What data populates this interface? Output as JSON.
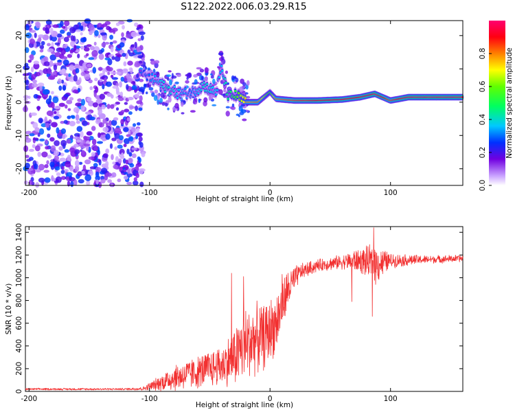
{
  "title": "S122.2022.006.03.29.R15",
  "colors": {
    "snr_line": "#f23030",
    "spectrogram_low": "#a070ff",
    "spectrogram_high": "#ff0033"
  },
  "chart_data": [
    {
      "type": "heatmap",
      "xlabel": "Height of straight line (km)",
      "ylabel": "Frequency (Hz)",
      "xlim": [
        -203,
        160
      ],
      "ylim": [
        -25,
        24.5
      ],
      "x_ticks": [
        -200,
        -100,
        0,
        100
      ],
      "x_tick_labels": [
        "-200",
        "-100",
        "0",
        "100"
      ],
      "y_ticks": [
        -20,
        -10,
        0,
        10,
        20
      ],
      "y_tick_labels": [
        "-20",
        "-10",
        "0",
        "10",
        "20"
      ],
      "colorbar": {
        "label": "Normalized spectral amplitude",
        "range": [
          0,
          1
        ],
        "ticks": [
          0.0,
          0.2,
          0.4,
          0.6,
          0.8
        ],
        "tick_labels": [
          "0.0",
          "0.2",
          "0.4",
          "0.6",
          "0.8"
        ],
        "colormap": "rainbow (violet-blue-cyan-green-yellow-red-magenta)"
      },
      "ridge": {
        "description": "dominant frequency ridge",
        "points": [
          {
            "x": -105,
            "y": 8,
            "amp": 0.25
          },
          {
            "x": -95,
            "y": 6.5,
            "amp": 0.35
          },
          {
            "x": -85,
            "y": 4,
            "amp": 0.4
          },
          {
            "x": -75,
            "y": 2.5,
            "amp": 0.35
          },
          {
            "x": -65,
            "y": 3,
            "amp": 0.3
          },
          {
            "x": -55,
            "y": 5,
            "amp": 0.4
          },
          {
            "x": -45,
            "y": 3,
            "amp": 0.35
          },
          {
            "x": -40,
            "y": 10,
            "amp": 0.35
          },
          {
            "x": -35,
            "y": 2,
            "amp": 0.45
          },
          {
            "x": -28,
            "y": 2,
            "amp": 0.55
          },
          {
            "x": -20,
            "y": 0,
            "amp": 0.75
          },
          {
            "x": -10,
            "y": 0,
            "amp": 0.8
          },
          {
            "x": 0,
            "y": 3,
            "amp": 0.55
          },
          {
            "x": 5,
            "y": 1,
            "amp": 0.8
          },
          {
            "x": 20,
            "y": 0.5,
            "amp": 0.85
          },
          {
            "x": 40,
            "y": 0.5,
            "amp": 0.9
          },
          {
            "x": 60,
            "y": 0.8,
            "amp": 0.9
          },
          {
            "x": 75,
            "y": 1.5,
            "amp": 0.9
          },
          {
            "x": 87,
            "y": 2.5,
            "amp": 0.95
          },
          {
            "x": 100,
            "y": 0.5,
            "amp": 0.85
          },
          {
            "x": 115,
            "y": 1.5,
            "amp": 0.95
          },
          {
            "x": 140,
            "y": 1.5,
            "amp": 0.95
          },
          {
            "x": 160,
            "y": 1.5,
            "amp": 0.95
          }
        ],
        "noise_region": {
          "x_range": [
            -203,
            -105
          ],
          "amp_range": [
            0.05,
            0.3
          ]
        }
      }
    },
    {
      "type": "line",
      "xlabel": "Height of straight line (km)",
      "ylabel": "SNR (10 * v/v)",
      "xlim": [
        -203,
        160
      ],
      "ylim": [
        0,
        1450
      ],
      "x_ticks": [
        -200,
        -100,
        0,
        100
      ],
      "x_tick_labels": [
        "-200",
        "-100",
        "0",
        "100"
      ],
      "y_ticks": [
        0,
        200,
        400,
        600,
        800,
        1000,
        1200,
        1400
      ],
      "y_tick_labels": [
        "0",
        "200",
        "400",
        "600",
        "800",
        "1000",
        "1200",
        "1400"
      ],
      "series": [
        {
          "envelope": [
            {
              "x": -203,
              "mean": 20,
              "spread": 10
            },
            {
              "x": -120,
              "mean": 20,
              "spread": 10
            },
            {
              "x": -105,
              "mean": 25,
              "spread": 20
            },
            {
              "x": -95,
              "mean": 60,
              "spread": 60
            },
            {
              "x": -80,
              "mean": 120,
              "spread": 130
            },
            {
              "x": -60,
              "mean": 170,
              "spread": 160
            },
            {
              "x": -40,
              "mean": 230,
              "spread": 200
            },
            {
              "x": -30,
              "mean": 300,
              "spread": 280
            },
            {
              "x": -22,
              "mean": 400,
              "spread": 380
            },
            {
              "x": -15,
              "mean": 450,
              "spread": 350
            },
            {
              "x": -5,
              "mean": 480,
              "spread": 320
            },
            {
              "x": 5,
              "mean": 600,
              "spread": 300
            },
            {
              "x": 15,
              "mean": 900,
              "spread": 200
            },
            {
              "x": 25,
              "mean": 1050,
              "spread": 80
            },
            {
              "x": 40,
              "mean": 1110,
              "spread": 60
            },
            {
              "x": 60,
              "mean": 1140,
              "spread": 70
            },
            {
              "x": 75,
              "mean": 1150,
              "spread": 120
            },
            {
              "x": 88,
              "mean": 1120,
              "spread": 200
            },
            {
              "x": 100,
              "mean": 1150,
              "spread": 70
            },
            {
              "x": 130,
              "mean": 1160,
              "spread": 40
            },
            {
              "x": 160,
              "mean": 1170,
              "spread": 35
            }
          ],
          "peaks": [
            {
              "x": -32,
              "y": 1040
            },
            {
              "x": -22,
              "y": 1010
            },
            {
              "x": 10,
              "y": 1030
            },
            {
              "x": 70,
              "y": 1230
            },
            {
              "x": 86,
              "y": 1440
            }
          ],
          "dips": [
            {
              "x": 68,
              "y": 790
            },
            {
              "x": 85,
              "y": 660
            }
          ]
        }
      ]
    }
  ]
}
